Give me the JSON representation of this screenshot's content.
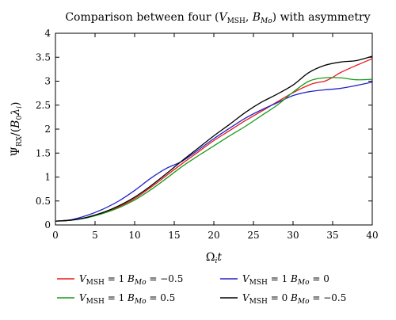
{
  "chart_data": {
    "type": "line",
    "title": "Comparison between four (V_MSH, B_Mo) with asymmetry",
    "xlabel": "Ω_i t",
    "ylabel": "Ψ_RX/(B_0 λ_i)",
    "xlim": [
      0,
      40
    ],
    "ylim": [
      0,
      4
    ],
    "x_ticks": [
      0,
      5,
      10,
      15,
      20,
      25,
      30,
      35,
      40
    ],
    "y_ticks": [
      0,
      0.5,
      1,
      1.5,
      2,
      2.5,
      3,
      3.5,
      4
    ],
    "grid": false,
    "legend_position": "below",
    "series": [
      {
        "name": "V_MSH = 1 B_Mo = −0.5",
        "color": "#e8191c",
        "x": [
          0,
          2,
          4,
          6,
          8,
          10,
          12,
          14,
          16,
          18,
          20,
          22,
          24,
          26,
          28,
          30,
          32,
          33,
          34,
          35,
          36,
          38,
          40
        ],
        "y": [
          0.08,
          0.1,
          0.16,
          0.26,
          0.38,
          0.55,
          0.78,
          1.03,
          1.28,
          1.52,
          1.76,
          1.97,
          2.18,
          2.37,
          2.57,
          2.76,
          2.92,
          2.97,
          3.0,
          3.08,
          3.18,
          3.33,
          3.47
        ]
      },
      {
        "name": "V_MSH = 1 B_Mo = 0",
        "color": "#2222cc",
        "x": [
          0,
          2,
          4,
          6,
          8,
          10,
          12,
          14,
          16,
          18,
          20,
          22,
          24,
          26,
          28,
          30,
          32,
          34,
          36,
          38,
          40
        ],
        "y": [
          0.08,
          0.11,
          0.2,
          0.33,
          0.5,
          0.72,
          0.97,
          1.18,
          1.33,
          1.56,
          1.8,
          2.02,
          2.23,
          2.4,
          2.55,
          2.7,
          2.78,
          2.82,
          2.85,
          2.91,
          2.98
        ]
      },
      {
        "name": "V_MSH = 1 B_Mo = 0.5",
        "color": "#1a9a1a",
        "x": [
          0,
          2,
          4,
          6,
          8,
          10,
          12,
          14,
          16,
          18,
          20,
          22,
          24,
          26,
          28,
          30,
          32,
          34,
          36,
          38,
          40
        ],
        "y": [
          0.08,
          0.1,
          0.15,
          0.24,
          0.36,
          0.52,
          0.73,
          0.97,
          1.22,
          1.44,
          1.65,
          1.86,
          2.06,
          2.28,
          2.5,
          2.77,
          3.0,
          3.07,
          3.07,
          3.03,
          3.04
        ]
      },
      {
        "name": "V_MSH = 0 B_Mo = −0.5",
        "color": "#000000",
        "x": [
          0,
          2,
          4,
          6,
          8,
          10,
          12,
          14,
          16,
          18,
          20,
          22,
          24,
          26,
          28,
          30,
          32,
          34,
          36,
          38,
          40
        ],
        "y": [
          0.08,
          0.1,
          0.16,
          0.26,
          0.4,
          0.58,
          0.81,
          1.07,
          1.34,
          1.6,
          1.86,
          2.1,
          2.35,
          2.56,
          2.73,
          2.92,
          3.18,
          3.33,
          3.4,
          3.43,
          3.52
        ]
      }
    ]
  }
}
